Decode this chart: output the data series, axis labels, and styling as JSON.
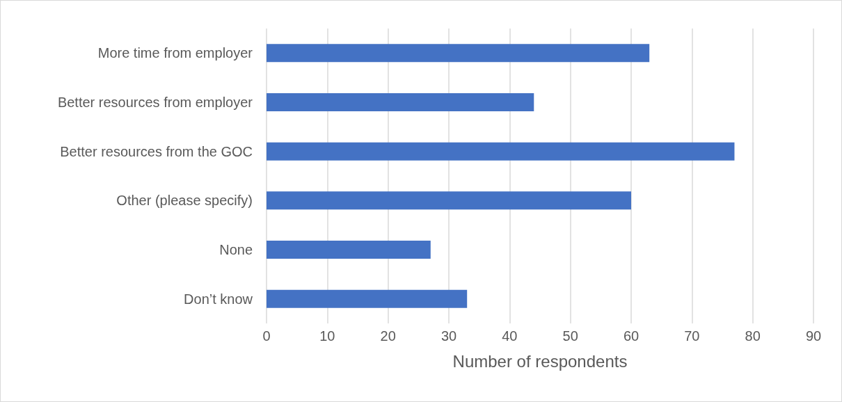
{
  "chart_data": {
    "type": "bar",
    "orientation": "horizontal",
    "xlabel": "Number of respondents",
    "categories": [
      "More time from employer",
      "Better resources from employer",
      "Better resources from the GOC",
      "Other (please specify)",
      "None",
      "Don’t know"
    ],
    "values": [
      63,
      44,
      77,
      60,
      27,
      33
    ],
    "color": "#4472c4",
    "xlim": [
      0,
      90
    ],
    "xticks": [
      0,
      10,
      20,
      30,
      40,
      50,
      60,
      70,
      80,
      90
    ],
    "grid": "x"
  }
}
